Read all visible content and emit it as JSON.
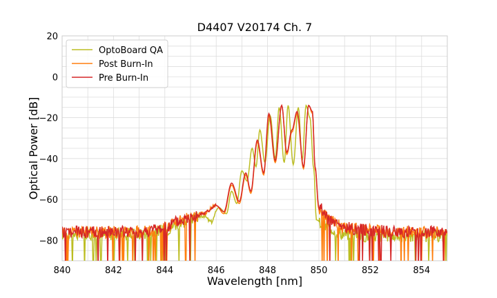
{
  "chart_data": {
    "type": "line",
    "title": "D4407 V20174 Ch. 7",
    "xlabel": "Wavelength [nm]",
    "ylabel": "Optical Power [dB]",
    "xlim": [
      840,
      855
    ],
    "ylim": [
      -90,
      20
    ],
    "xticks": [
      "840",
      "842",
      "844",
      "846",
      "848",
      "850",
      "852",
      "854"
    ],
    "yticks": [
      "20",
      "0",
      "−20",
      "−40",
      "−60",
      "−80"
    ],
    "grid": true,
    "legend_position": "top-left",
    "series": [
      {
        "name": "OptoBoard QA",
        "color": "#bcbd22",
        "x": [
          840,
          841,
          842,
          843,
          843.5,
          844,
          844.5,
          845,
          845.5,
          845.8,
          846.1,
          846.4,
          846.6,
          846.8,
          847.0,
          847.2,
          847.4,
          847.55,
          847.7,
          847.9,
          848.1,
          848.3,
          848.45,
          848.65,
          848.8,
          849.0,
          849.2,
          849.35,
          849.5,
          849.65,
          849.8,
          849.9,
          850.2,
          851,
          852,
          853,
          854,
          855
        ],
        "y": [
          -77,
          -77,
          -77,
          -77,
          -76,
          -75,
          -72,
          -70,
          -68,
          -71,
          -64,
          -67,
          -56,
          -62,
          -46,
          -51,
          -35,
          -44,
          -26,
          -42,
          -19,
          -40,
          -15,
          -42,
          -14,
          -43,
          -15,
          -41,
          -14,
          -20,
          -45,
          -70,
          -73,
          -77,
          -78,
          -78,
          -78,
          -78
        ]
      },
      {
        "name": "Post Burn-In",
        "color": "#ff7f0e",
        "x": [
          840,
          841,
          842,
          843,
          843.5,
          844,
          844.5,
          845,
          845.5,
          846.0,
          846.3,
          846.6,
          846.9,
          847.15,
          847.35,
          847.6,
          847.85,
          848.05,
          848.3,
          848.55,
          848.75,
          848.95,
          849.15,
          849.4,
          849.6,
          849.75,
          849.85,
          850.0,
          850.5,
          851,
          852,
          853,
          854,
          855
        ],
        "y": [
          -76,
          -76,
          -76,
          -76,
          -75,
          -74,
          -71,
          -69,
          -67,
          -63,
          -67,
          -53,
          -62,
          -48,
          -57,
          -32,
          -48,
          -19,
          -42,
          -14,
          -38,
          -27,
          -18,
          -45,
          -14,
          -18,
          -45,
          -65,
          -71,
          -74,
          -75,
          -76,
          -76,
          -76
        ]
      },
      {
        "name": "Pre Burn-In",
        "color": "#d62728",
        "x": [
          840,
          841,
          842,
          843,
          843.5,
          844,
          844.5,
          845,
          845.5,
          846.0,
          846.3,
          846.6,
          846.9,
          847.15,
          847.35,
          847.6,
          847.85,
          848.05,
          848.3,
          848.55,
          848.75,
          848.95,
          849.15,
          849.4,
          849.6,
          849.75,
          849.85,
          850.0,
          850.5,
          851,
          852,
          853,
          854,
          855
        ],
        "y": [
          -76,
          -76,
          -76,
          -76,
          -75,
          -74,
          -71,
          -69,
          -67,
          -63,
          -66,
          -52,
          -61,
          -47,
          -56,
          -31,
          -47,
          -18,
          -41,
          -14,
          -37,
          -26,
          -17,
          -44,
          -14,
          -17,
          -44,
          -64,
          -71,
          -74,
          -75,
          -76,
          -76,
          -76
        ]
      }
    ]
  }
}
